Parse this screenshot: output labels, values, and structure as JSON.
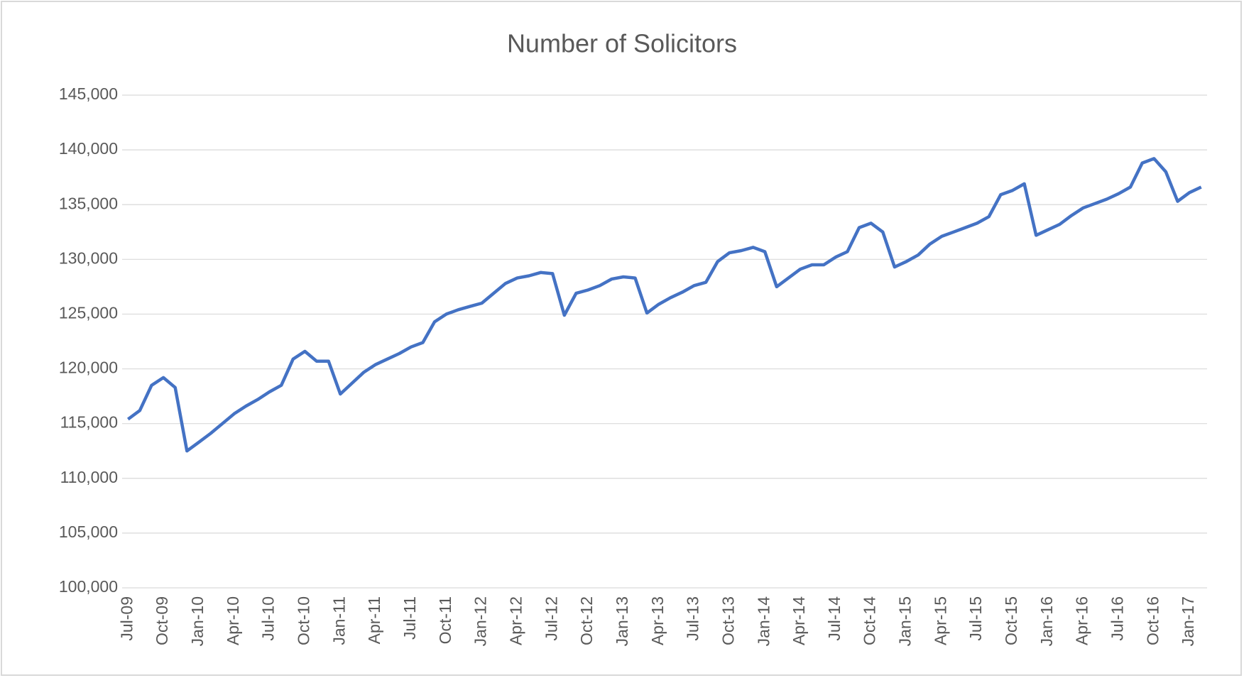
{
  "chart_data": {
    "type": "line",
    "title": "Number of Solicitors",
    "categories": [
      "Jul-09",
      null,
      null,
      "Oct-09",
      null,
      null,
      "Jan-10",
      null,
      null,
      "Apr-10",
      null,
      null,
      "Jul-10",
      null,
      null,
      "Oct-10",
      null,
      null,
      "Jan-11",
      null,
      null,
      "Apr-11",
      null,
      null,
      "Jul-11",
      null,
      null,
      "Oct-11",
      null,
      null,
      "Jan-12",
      null,
      null,
      "Apr-12",
      null,
      null,
      "Jul-12",
      null,
      null,
      "Oct-12",
      null,
      null,
      "Jan-13",
      null,
      null,
      "Apr-13",
      null,
      null,
      "Jul-13",
      null,
      null,
      "Oct-13",
      null,
      null,
      "Jan-14",
      null,
      null,
      "Apr-14",
      null,
      null,
      "Jul-14",
      null,
      null,
      "Oct-14",
      null,
      null,
      "Jan-15",
      null,
      null,
      "Apr-15",
      null,
      null,
      "Jul-15",
      null,
      null,
      "Oct-15",
      null,
      null,
      "Jan-16",
      null,
      null,
      "Apr-16",
      null,
      null,
      "Jul-16",
      null,
      null,
      "Oct-16",
      null,
      null,
      "Jan-17",
      null
    ],
    "values": [
      115400,
      116200,
      118500,
      119200,
      118300,
      112500,
      113300,
      114100,
      115000,
      115900,
      116600,
      117200,
      117900,
      118500,
      120900,
      121600,
      120700,
      120700,
      117700,
      118700,
      119700,
      120400,
      120900,
      121400,
      122000,
      122400,
      124300,
      125000,
      125400,
      125700,
      126000,
      126900,
      127800,
      128300,
      128500,
      128800,
      128700,
      124900,
      126900,
      127200,
      127600,
      128200,
      128400,
      128300,
      125100,
      125900,
      126500,
      127000,
      127600,
      127900,
      129800,
      130600,
      130800,
      131100,
      130700,
      127500,
      128300,
      129100,
      129500,
      129500,
      130200,
      130700,
      132900,
      133300,
      132500,
      129300,
      129800,
      130400,
      131400,
      132100,
      132500,
      132900,
      133300,
      133900,
      135900,
      136300,
      136900,
      132200,
      132700,
      133200,
      134000,
      134700,
      135100,
      135500,
      136000,
      136600,
      138800,
      139200,
      138000,
      135300,
      136100,
      136600
    ],
    "color": "#4472c4",
    "ylim": [
      100000,
      145000
    ],
    "yticks": [
      {
        "value": 100000,
        "label": "100,000"
      },
      {
        "value": 105000,
        "label": "105,000"
      },
      {
        "value": 110000,
        "label": "110,000"
      },
      {
        "value": 115000,
        "label": "115,000"
      },
      {
        "value": 120000,
        "label": "120,000"
      },
      {
        "value": 125000,
        "label": "125,000"
      },
      {
        "value": 130000,
        "label": "130,000"
      },
      {
        "value": 135000,
        "label": "135,000"
      },
      {
        "value": 140000,
        "label": "140,000"
      },
      {
        "value": 145000,
        "label": "145,000"
      }
    ],
    "grid": true
  }
}
